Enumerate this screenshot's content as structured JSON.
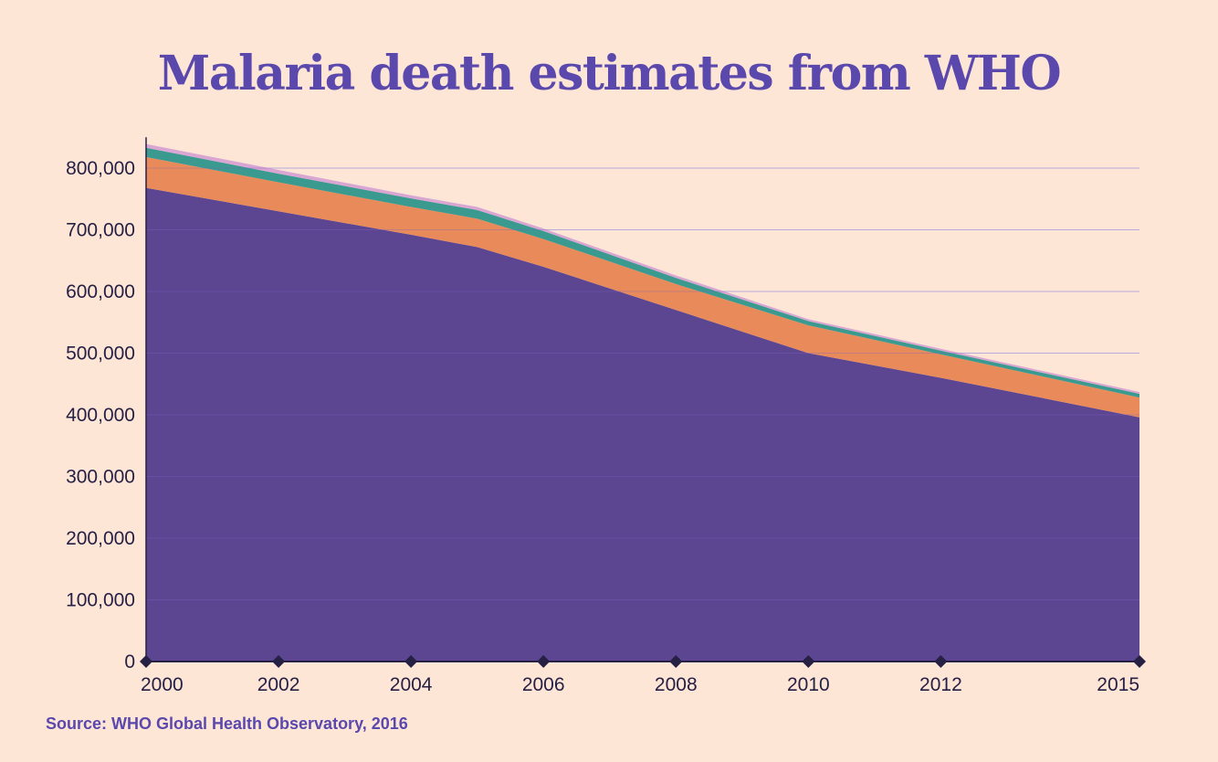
{
  "chart_data": {
    "type": "area",
    "title": "Malaria death estimates from WHO",
    "stacked": true,
    "x": [
      2000,
      2002,
      2004,
      2005,
      2006,
      2008,
      2010,
      2012,
      2015
    ],
    "x_tick_labels": [
      "2000",
      "2002",
      "2004",
      "2006",
      "2008",
      "2010",
      "2012",
      "2015"
    ],
    "x_tick_values": [
      2000,
      2002,
      2004,
      2006,
      2008,
      2010,
      2012,
      2015
    ],
    "y_tick_labels": [
      "0",
      "100,000",
      "200,000",
      "300,000",
      "400,000",
      "500,000",
      "600,000",
      "700,000",
      "800,000"
    ],
    "y_tick_values": [
      0,
      100000,
      200000,
      300000,
      400000,
      500000,
      600000,
      700000,
      800000
    ],
    "ylim": [
      0,
      850000
    ],
    "xlim": [
      2000,
      2015
    ],
    "grid": true,
    "series": [
      {
        "color": "#5c4692",
        "values": [
          768000,
          730000,
          692000,
          672000,
          640000,
          570000,
          500000,
          460000,
          396000
        ]
      },
      {
        "color": "#e98a5a",
        "values": [
          50000,
          47000,
          45000,
          46000,
          45000,
          42000,
          45000,
          38000,
          32000
        ]
      },
      {
        "color": "#3a9a8f",
        "values": [
          15000,
          14000,
          14000,
          14000,
          13000,
          10000,
          7000,
          6000,
          6000
        ]
      },
      {
        "color": "#d9a5d3",
        "values": [
          6000,
          6000,
          5000,
          5000,
          4000,
          4000,
          3000,
          3000,
          3000
        ]
      }
    ]
  },
  "source": "Source: WHO Global Health Observatory, 2016",
  "colors": {
    "background": "#fde6d6",
    "title": "#5b48ad",
    "axis": "#262045",
    "grid": "#d9d0ee"
  }
}
